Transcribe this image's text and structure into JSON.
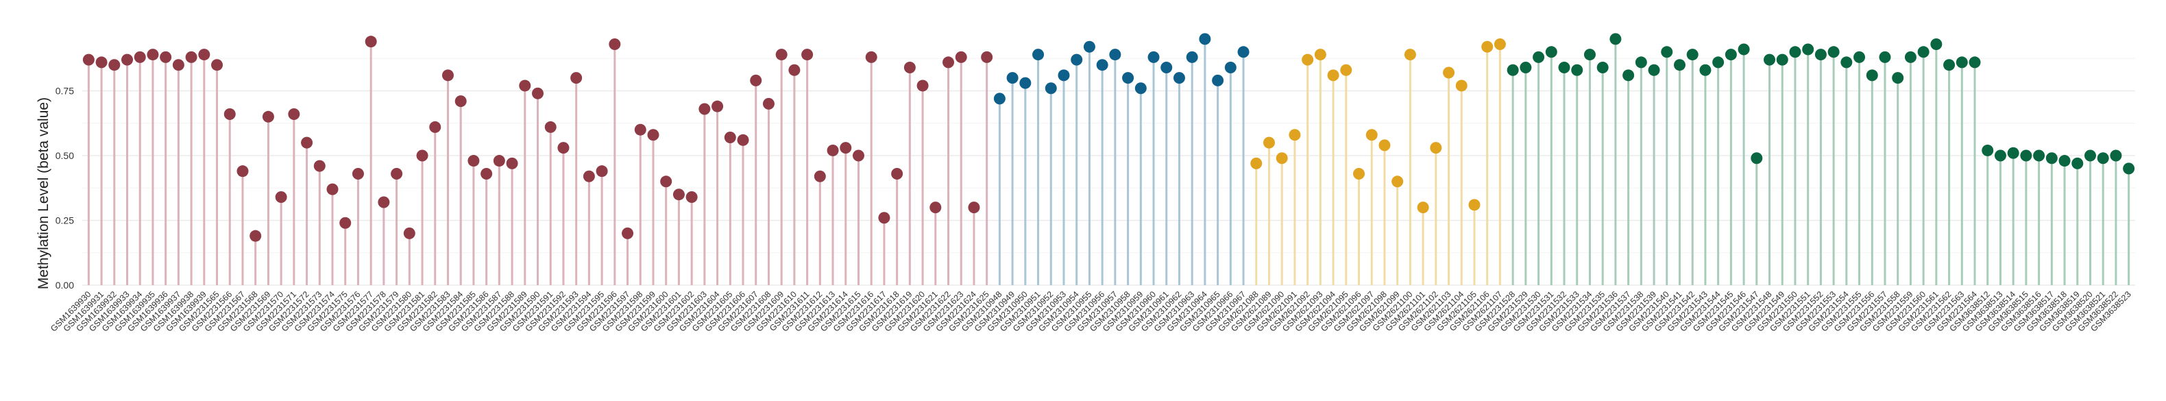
{
  "chart_data": {
    "type": "lollipop",
    "ylabel": "Methylation Level (beta value)",
    "xlabel": "",
    "title": "",
    "ylim": [
      0,
      1
    ],
    "yticks": [
      0.0,
      0.25,
      0.5,
      0.75
    ],
    "ytick_labels": [
      "0.00",
      "0.25",
      "0.50",
      "0.75"
    ],
    "grid": true,
    "legend": "none",
    "groups": [
      {
        "color": "#8e3b46",
        "stem_color": "#ddb3bb",
        "samples": [
          "GSM1639930",
          "GSM1639931",
          "GSM1639932",
          "GSM1639933",
          "GSM1639934",
          "GSM1639935",
          "GSM1639936",
          "GSM1639937",
          "GSM1639938",
          "GSM1639939",
          "GSM2231565",
          "GSM2231566",
          "GSM2231567",
          "GSM2231568",
          "GSM2231569",
          "GSM2231570",
          "GSM2231571",
          "GSM2231572",
          "GSM2231573",
          "GSM2231574",
          "GSM2231575",
          "GSM2231576",
          "GSM2231577",
          "GSM2231578",
          "GSM2231579",
          "GSM2231580",
          "GSM2231581",
          "GSM2231582",
          "GSM2231583",
          "GSM2231584",
          "GSM2231585",
          "GSM2231586",
          "GSM2231587",
          "GSM2231588",
          "GSM2231589",
          "GSM2231590",
          "GSM2231591",
          "GSM2231592",
          "GSM2231593",
          "GSM2231594",
          "GSM2231595",
          "GSM2231596",
          "GSM2231597",
          "GSM2231598",
          "GSM2231599",
          "GSM2231600",
          "GSM2231601",
          "GSM2231602",
          "GSM2231603",
          "GSM2231604",
          "GSM2231605",
          "GSM2231606",
          "GSM2231607",
          "GSM2231608",
          "GSM2231609",
          "GSM2231610",
          "GSM2231611",
          "GSM2231612",
          "GSM2231613",
          "GSM2231614",
          "GSM2231615",
          "GSM2231616",
          "GSM2231617",
          "GSM2231618",
          "GSM2231619",
          "GSM2231620",
          "GSM2231621",
          "GSM2231622",
          "GSM2231623",
          "GSM2231624",
          "GSM2231625"
        ],
        "values": [
          0.87,
          0.86,
          0.85,
          0.87,
          0.88,
          0.89,
          0.88,
          0.85,
          0.88,
          0.89,
          0.85,
          0.66,
          0.44,
          0.19,
          0.65,
          0.34,
          0.66,
          0.55,
          0.46,
          0.37,
          0.24,
          0.43,
          0.94,
          0.32,
          0.43,
          0.2,
          0.5,
          0.61,
          0.81,
          0.71,
          0.48,
          0.43,
          0.48,
          0.47,
          0.77,
          0.74,
          0.61,
          0.53,
          0.8,
          0.42,
          0.44,
          0.93,
          0.2,
          0.6,
          0.58,
          0.4,
          0.35,
          0.34,
          0.68,
          0.69,
          0.57,
          0.56,
          0.79,
          0.7,
          0.89,
          0.83,
          0.89,
          0.42,
          0.52,
          0.53,
          0.5,
          0.88,
          0.26,
          0.43,
          0.84,
          0.77,
          0.3,
          0.86,
          0.88,
          0.3,
          0.88
        ]
      },
      {
        "color": "#0e5f8a",
        "stem_color": "#a9c6d6",
        "samples": [
          "GSM2310948",
          "GSM2310949",
          "GSM2310950",
          "GSM2310951",
          "GSM2310952",
          "GSM2310953",
          "GSM2310954",
          "GSM2310955",
          "GSM2310956",
          "GSM2310957",
          "GSM2310958",
          "GSM2310959",
          "GSM2310960",
          "GSM2310961",
          "GSM2310962",
          "GSM2310963",
          "GSM2310964",
          "GSM2310965",
          "GSM2310966",
          "GSM2310967"
        ],
        "values": [
          0.72,
          0.8,
          0.78,
          0.89,
          0.76,
          0.81,
          0.87,
          0.92,
          0.85,
          0.89,
          0.8,
          0.76,
          0.88,
          0.84,
          0.8,
          0.88,
          0.95,
          0.79,
          0.84,
          0.9
        ]
      },
      {
        "color": "#e0a31f",
        "stem_color": "#f2dca6",
        "samples": [
          "GSM2621088",
          "GSM2621089",
          "GSM2621090",
          "GSM2621091",
          "GSM2621092",
          "GSM2621093",
          "GSM2621094",
          "GSM2621095",
          "GSM2621096",
          "GSM2621097",
          "GSM2621098",
          "GSM2621099",
          "GSM2621100",
          "GSM2621101",
          "GSM2621102",
          "GSM2621103",
          "GSM2621104",
          "GSM2621105",
          "GSM2621106",
          "GSM2621107"
        ],
        "values": [
          0.47,
          0.55,
          0.49,
          0.58,
          0.87,
          0.89,
          0.81,
          0.83,
          0.43,
          0.58,
          0.54,
          0.4,
          0.89,
          0.3,
          0.53,
          0.82,
          0.77,
          0.31,
          0.92,
          0.93
        ]
      },
      {
        "color": "#0a6640",
        "stem_color": "#a8ccba",
        "samples": [
          "GSM2231528",
          "GSM2231529",
          "GSM2231530",
          "GSM2231531",
          "GSM2231532",
          "GSM2231533",
          "GSM2231534",
          "GSM2231535",
          "GSM2231536",
          "GSM2231537",
          "GSM2231538",
          "GSM2231539",
          "GSM2231540",
          "GSM2231541",
          "GSM2231542",
          "GSM2231543",
          "GSM2231544",
          "GSM2231545",
          "GSM2231546",
          "GSM2231547",
          "GSM2231548",
          "GSM2231549",
          "GSM2231550",
          "GSM2231551",
          "GSM2231552",
          "GSM2231553",
          "GSM2231554",
          "GSM2231555",
          "GSM2231556",
          "GSM2231557",
          "GSM2231558",
          "GSM2231559",
          "GSM2231560",
          "GSM2231561",
          "GSM2231562",
          "GSM2231563",
          "GSM2231564"
        ],
        "values": [
          0.83,
          0.84,
          0.88,
          0.9,
          0.84,
          0.83,
          0.89,
          0.84,
          0.95,
          0.81,
          0.86,
          0.83,
          0.9,
          0.85,
          0.89,
          0.83,
          0.86,
          0.89,
          0.91,
          0.49,
          0.87,
          0.87,
          0.9,
          0.91,
          0.89,
          0.9,
          0.86,
          0.88,
          0.81,
          0.88,
          0.8,
          0.88,
          0.9,
          0.93,
          0.85,
          0.86,
          0.86
        ]
      },
      {
        "color": "#0a6640",
        "stem_color": "#a8ccba",
        "samples": [
          "GSM3638512",
          "GSM3638513",
          "GSM3638514",
          "GSM3638515",
          "GSM3638516",
          "GSM3638517",
          "GSM3638518",
          "GSM3638519",
          "GSM3638520",
          "GSM3638521",
          "GSM3638522",
          "GSM3638523"
        ],
        "values": [
          0.52,
          0.5,
          0.51,
          0.5,
          0.5,
          0.49,
          0.48,
          0.47,
          0.5,
          0.49,
          0.5,
          0.45
        ]
      }
    ]
  }
}
